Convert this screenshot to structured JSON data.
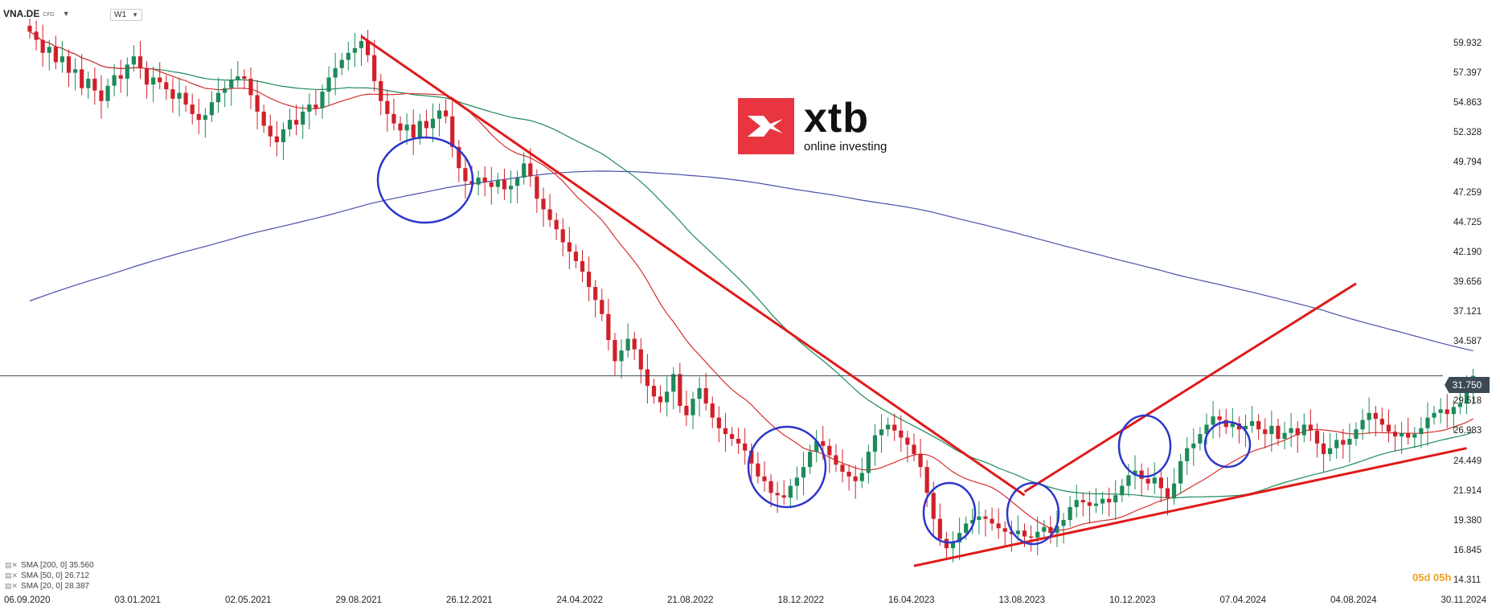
{
  "header": {
    "symbol": "VNA.DE",
    "instrument_type": "CFD",
    "timeframe": "W1"
  },
  "logo": {
    "brand": "xtb",
    "tagline": "online investing",
    "color": "#e8353f"
  },
  "current_price": {
    "label": "31.750",
    "value": 31.75
  },
  "countdown": "05d 05h",
  "legend": [
    {
      "label": "SMA [200, 0] 35.560",
      "color": "#4a4fa8"
    },
    {
      "label": "SMA [50, 0] 26.712",
      "color": "#1e8a5a"
    },
    {
      "label": "SMA [20, 0] 28.387",
      "color": "#d63030"
    }
  ],
  "colors": {
    "up": "#1e8a5a",
    "down": "#d0202a",
    "sma200": "#4a4fa8",
    "sma50": "#1e8a5a",
    "sma20": "#d63030",
    "trend": "#e01a1a",
    "circle": "#2b36c8",
    "price_line": "#3b4a55"
  },
  "chart_data": {
    "type": "candlestick",
    "y_axis_ticks": [
      "59.932",
      "57.397",
      "54.863",
      "52.328",
      "49.794",
      "47.259",
      "44.725",
      "42.190",
      "39.656",
      "37.121",
      "34.587",
      "31.750",
      "29.518",
      "26.983",
      "24.449",
      "21.914",
      "19.380",
      "16.845",
      "14.311"
    ],
    "y_axis_values": [
      59.932,
      57.397,
      54.863,
      52.328,
      49.794,
      47.259,
      44.725,
      42.19,
      39.656,
      37.121,
      34.587,
      31.75,
      29.518,
      26.983,
      24.449,
      21.914,
      19.38,
      16.845,
      14.311
    ],
    "x_axis_ticks": [
      "06.09.2020",
      "03.01.2021",
      "02.05.2021",
      "29.08.2021",
      "26.12.2021",
      "24.04.2022",
      "21.08.2022",
      "18.12.2022",
      "16.04.2023",
      "13.08.2023",
      "10.12.2023",
      "07.04.2024",
      "04.08.2024",
      "30.11.2024"
    ],
    "weekly_close": [
      61.0,
      60.3,
      59.2,
      59.7,
      58.4,
      58.9,
      57.5,
      57.8,
      56.2,
      57.0,
      56.0,
      55.1,
      56.4,
      57.3,
      57.0,
      58.2,
      58.9,
      57.9,
      56.5,
      57.1,
      56.7,
      56.1,
      55.3,
      55.8,
      54.8,
      54.0,
      53.5,
      53.9,
      55.0,
      55.8,
      56.2,
      56.9,
      57.2,
      57.0,
      55.6,
      54.2,
      53.0,
      52.1,
      51.6,
      52.7,
      53.5,
      53.1,
      54.2,
      54.8,
      54.5,
      55.9,
      57.1,
      57.9,
      58.6,
      59.2,
      59.6,
      60.2,
      59.0,
      56.8,
      55.1,
      54.0,
      53.2,
      52.6,
      53.1,
      52.0,
      53.4,
      52.8,
      53.6,
      54.3,
      53.8,
      51.2,
      49.4,
      48.3,
      48.0,
      48.6,
      48.2,
      47.8,
      48.4,
      47.6,
      47.9,
      48.6,
      49.8,
      48.7,
      46.8,
      45.9,
      45.0,
      44.2,
      43.1,
      42.3,
      41.5,
      40.6,
      39.3,
      38.2,
      37.0,
      34.8,
      33.0,
      33.9,
      34.9,
      34.0,
      32.3,
      30.9,
      30.0,
      29.5,
      30.4,
      31.9,
      29.2,
      28.4,
      29.8,
      30.7,
      29.4,
      28.2,
      27.3,
      26.8,
      26.4,
      26.0,
      25.4,
      24.3,
      23.2,
      22.8,
      21.8,
      21.6,
      21.4,
      22.4,
      23.1,
      24.0,
      25.3,
      26.2,
      25.8,
      25.0,
      24.2,
      23.6,
      23.2,
      22.8,
      23.5,
      25.3,
      26.7,
      27.2,
      27.6,
      27.1,
      26.5,
      25.9,
      25.1,
      24.0,
      21.8,
      19.6,
      17.9,
      17.1,
      17.6,
      18.4,
      19.2,
      19.5,
      19.8,
      19.6,
      19.2,
      18.8,
      18.5,
      18.3,
      18.6,
      18.1,
      18.0,
      18.5,
      18.9,
      18.4,
      19.0,
      19.5,
      20.6,
      21.2,
      21.0,
      20.7,
      20.9,
      21.3,
      21.0,
      21.6,
      22.4,
      23.3,
      23.7,
      23.0,
      22.6,
      23.1,
      22.2,
      21.4,
      22.6,
      24.5,
      25.6,
      26.0,
      26.8,
      27.6,
      28.3,
      28.0,
      27.4,
      27.7,
      27.2,
      27.5,
      27.9,
      27.2,
      26.8,
      27.5,
      26.4,
      26.9,
      27.3,
      26.7,
      27.6,
      27.1,
      26.0,
      25.1,
      25.6,
      26.3,
      25.9,
      26.4,
      27.2,
      28.0,
      28.6,
      28.1,
      27.6,
      27.0,
      26.6,
      26.9,
      26.5,
      26.8,
      27.3,
      28.2,
      28.6,
      28.9,
      28.5,
      29.1,
      29.4,
      30.5,
      31.75
    ],
    "overlays": [
      {
        "type": "trendline",
        "from": [
          "29.08.2021",
          60.6
        ],
        "to": [
          "13.08.2023",
          21.6
        ]
      },
      {
        "type": "trendline",
        "from": [
          "13.08.2023",
          21.9
        ],
        "to": [
          "04.08.2024",
          39.6
        ]
      },
      {
        "type": "trendline",
        "from": [
          "16.04.2023",
          15.6
        ],
        "to": [
          "30.11.2024",
          25.6
        ]
      }
    ]
  }
}
